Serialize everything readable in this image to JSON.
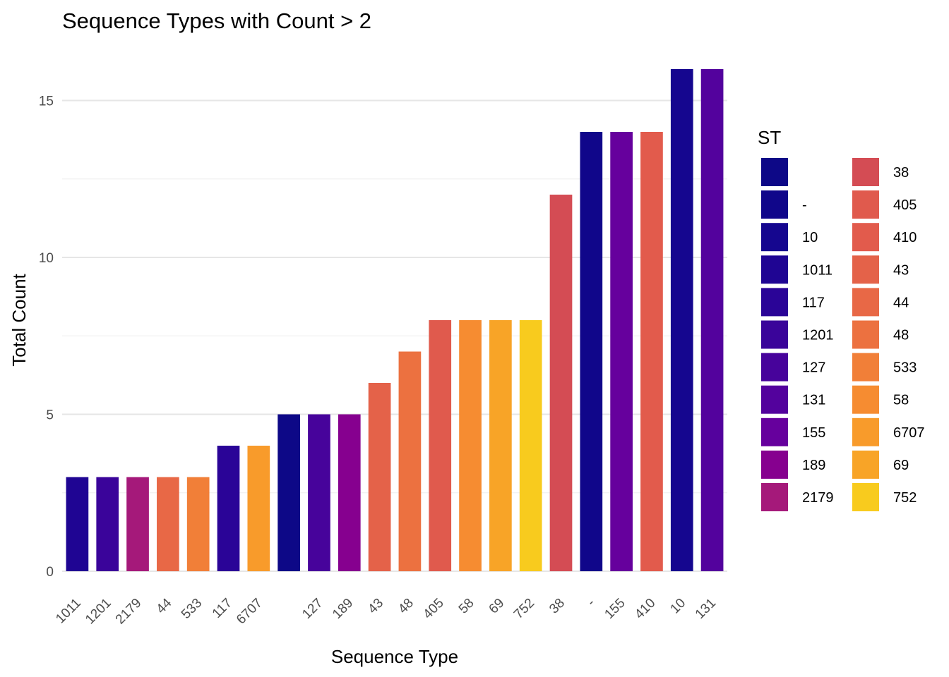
{
  "chart_data": {
    "type": "bar",
    "title": "Sequence Types with Count > 2",
    "xlabel": "Sequence Type",
    "ylabel": "Total Count",
    "ylim": [
      -0.2,
      16
    ],
    "yticks": [
      0,
      5,
      10,
      15
    ],
    "grid": true,
    "legend_position": "right",
    "categories": [
      "1011",
      "1201",
      "2179",
      "44",
      "533",
      "117",
      "6707",
      "",
      "127",
      "189",
      "43",
      "48",
      "405",
      "58",
      "69",
      "752",
      "38",
      "-",
      "155",
      "410",
      "10",
      "131"
    ],
    "values": [
      3,
      3,
      3,
      3,
      3,
      4,
      4,
      5,
      5,
      5,
      6,
      7,
      8,
      8,
      8,
      8,
      12,
      14,
      14,
      14,
      16,
      16
    ],
    "legend": {
      "title": "ST",
      "entries": [
        {
          "label": "",
          "color": "#0D0887"
        },
        {
          "label": "-",
          "color": "#10068A"
        },
        {
          "label": "10",
          "color": "#15068F"
        },
        {
          "label": "1011",
          "color": "#1F0593"
        },
        {
          "label": "117",
          "color": "#2A0497"
        },
        {
          "label": "1201",
          "color": "#3A049A"
        },
        {
          "label": "127",
          "color": "#47039B"
        },
        {
          "label": "131",
          "color": "#53029D"
        },
        {
          "label": "155",
          "color": "#66009D"
        },
        {
          "label": "189",
          "color": "#86008F"
        },
        {
          "label": "2179",
          "color": "#A5197A"
        },
        {
          "label": "38",
          "color": "#D44C54"
        },
        {
          "label": "405",
          "color": "#E05A4D"
        },
        {
          "label": "410",
          "color": "#E25B4C"
        },
        {
          "label": "43",
          "color": "#E46249"
        },
        {
          "label": "44",
          "color": "#E86846"
        },
        {
          "label": "48",
          "color": "#EC7140"
        },
        {
          "label": "533",
          "color": "#F17F38"
        },
        {
          "label": "58",
          "color": "#F68C31"
        },
        {
          "label": "6707",
          "color": "#F89B2B"
        },
        {
          "label": "69",
          "color": "#F8A427"
        },
        {
          "label": "752",
          "color": "#F8CB1E"
        }
      ]
    }
  }
}
